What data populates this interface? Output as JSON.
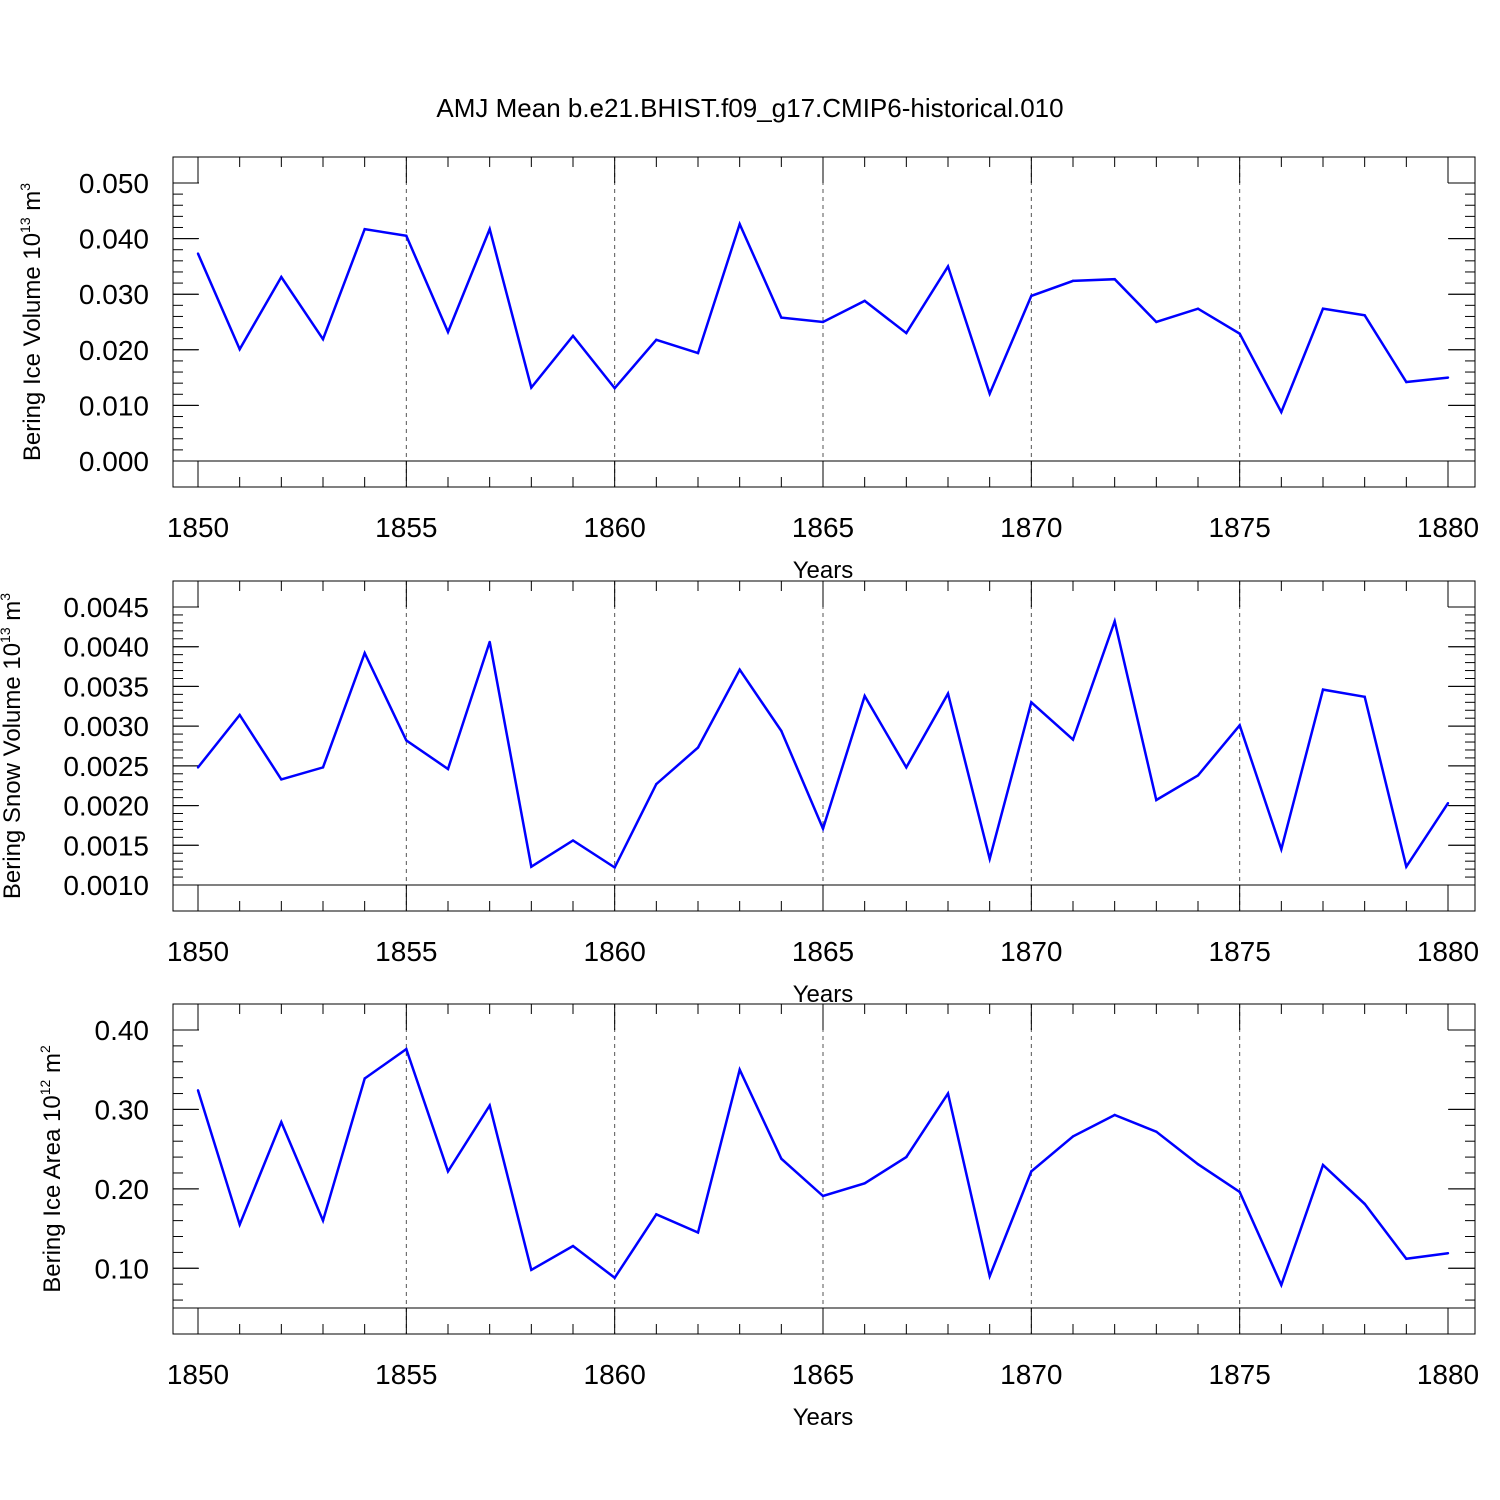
{
  "colors": {
    "series": "#0000ff",
    "axis": "#000000",
    "grid": "#555555",
    "background": "#ffffff"
  },
  "chart_data": [
    {
      "type": "line",
      "title": "AMJ Mean b.e21.BHIST.f09_g17.CMIP6-historical.010",
      "xlabel": "Years",
      "ylabel": {
        "text": "Bering Ice Volume 10",
        "exp": "13",
        "unit": " m",
        "unit_exp": "3"
      },
      "xlim": [
        1850,
        1880
      ],
      "ylim": [
        0.0,
        0.05
      ],
      "xticks": [
        "1850",
        "1855",
        "1860",
        "1865",
        "1870",
        "1875",
        "1880"
      ],
      "yticks": [
        "0.000",
        "0.010",
        "0.020",
        "0.030",
        "0.040",
        "0.050"
      ],
      "x": [
        1850,
        1851,
        1852,
        1853,
        1854,
        1855,
        1856,
        1857,
        1858,
        1859,
        1860,
        1861,
        1862,
        1863,
        1864,
        1865,
        1866,
        1867,
        1868,
        1869,
        1870,
        1871,
        1872,
        1873,
        1874,
        1875,
        1876,
        1877,
        1878,
        1879,
        1880
      ],
      "values": [
        0.0373,
        0.0201,
        0.0331,
        0.0219,
        0.0417,
        0.0405,
        0.0232,
        0.0417,
        0.0132,
        0.0225,
        0.0131,
        0.0218,
        0.0194,
        0.0426,
        0.0258,
        0.025,
        0.0288,
        0.023,
        0.035,
        0.0121,
        0.0297,
        0.0324,
        0.0327,
        0.025,
        0.0274,
        0.0229,
        0.0088,
        0.0274,
        0.0262,
        0.0142,
        0.015
      ]
    },
    {
      "type": "line",
      "title": "",
      "xlabel": "Years",
      "ylabel": {
        "text": "Bering Snow Volume 10",
        "exp": "13",
        "unit": " m",
        "unit_exp": "3"
      },
      "xlim": [
        1850,
        1880
      ],
      "ylim": [
        0.001,
        0.0045
      ],
      "xticks": [
        "1850",
        "1855",
        "1860",
        "1865",
        "1870",
        "1875",
        "1880"
      ],
      "yticks": [
        "0.0010",
        "0.0015",
        "0.0020",
        "0.0025",
        "0.0030",
        "0.0035",
        "0.0040",
        "0.0045"
      ],
      "x": [
        1850,
        1851,
        1852,
        1853,
        1854,
        1855,
        1856,
        1857,
        1858,
        1859,
        1860,
        1861,
        1862,
        1863,
        1864,
        1865,
        1866,
        1867,
        1868,
        1869,
        1870,
        1871,
        1872,
        1873,
        1874,
        1875,
        1876,
        1877,
        1878,
        1879,
        1880
      ],
      "values": [
        0.00248,
        0.00314,
        0.00233,
        0.00248,
        0.00392,
        0.00282,
        0.00246,
        0.00406,
        0.00123,
        0.00156,
        0.00122,
        0.00227,
        0.00273,
        0.00371,
        0.00294,
        0.00171,
        0.00338,
        0.00248,
        0.00341,
        0.00133,
        0.0033,
        0.00283,
        0.00432,
        0.00207,
        0.00238,
        0.00301,
        0.00145,
        0.00346,
        0.00337,
        0.00123,
        0.00203
      ]
    },
    {
      "type": "line",
      "title": "",
      "xlabel": "Years",
      "ylabel": {
        "text": "Bering Ice Area 10",
        "exp": "12",
        "unit": " m",
        "unit_exp": "2"
      },
      "xlim": [
        1850,
        1880
      ],
      "ylim": [
        0.05,
        0.4
      ],
      "xticks": [
        "1850",
        "1855",
        "1860",
        "1865",
        "1870",
        "1875",
        "1880"
      ],
      "yticks": [
        "0.10",
        "0.20",
        "0.30",
        "0.40"
      ],
      "x": [
        1850,
        1851,
        1852,
        1853,
        1854,
        1855,
        1856,
        1857,
        1858,
        1859,
        1860,
        1861,
        1862,
        1863,
        1864,
        1865,
        1866,
        1867,
        1868,
        1869,
        1870,
        1871,
        1872,
        1873,
        1874,
        1875,
        1876,
        1877,
        1878,
        1879,
        1880
      ],
      "values": [
        0.324,
        0.155,
        0.284,
        0.16,
        0.339,
        0.376,
        0.222,
        0.305,
        0.098,
        0.128,
        0.088,
        0.168,
        0.145,
        0.35,
        0.238,
        0.191,
        0.207,
        0.24,
        0.32,
        0.09,
        0.222,
        0.266,
        0.293,
        0.272,
        0.231,
        0.196,
        0.079,
        0.23,
        0.181,
        0.112,
        0.119
      ]
    }
  ]
}
